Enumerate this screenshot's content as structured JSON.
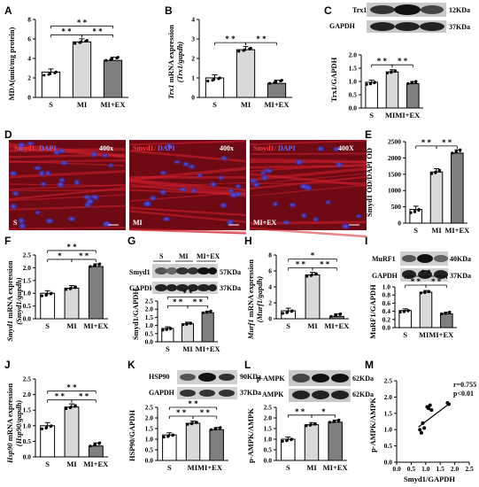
{
  "figure": {
    "panels": {
      "A": {
        "letter": "A",
        "ylabel": "MDA(unit/mg protein)"
      },
      "B": {
        "letter": "B",
        "ylabel_italic": "Trx1",
        "ylabel_tail": " mRNA expression",
        "ylabel2": "(Trx1/gapdh)"
      },
      "C": {
        "letter": "C",
        "ylabel": "Trx1/GAPDH",
        "blot_labels": [
          "Trx1",
          "GAPDH"
        ],
        "kda": [
          "12KDa",
          "37KDa"
        ]
      },
      "D": {
        "letter": "D",
        "image_labels": [
          "S",
          "MI",
          "MI+EX"
        ],
        "mag": [
          "400x",
          "400x",
          "400X"
        ],
        "stain_red": "Smyd1",
        "stain_blue": "DAPI",
        "stain_sep1": " ",
        "stain_sep2": "/"
      },
      "E": {
        "letter": "E",
        "ylabel": "Smyd1 OD/DAPI OD"
      },
      "F": {
        "letter": "F",
        "ylabel_italic": "Smyd1",
        "ylabel_tail": " mRNA expression",
        "ylabel2": "(Smyd1/gapdh)"
      },
      "G": {
        "letter": "G",
        "ylabel": "Smyd1/GAPDH",
        "blot_labels": [
          "Smyd1",
          "GAPDH"
        ],
        "kda": [
          "57KDa",
          "37KDa"
        ],
        "lane_labels": [
          "S",
          "MI",
          "MI+EX"
        ]
      },
      "H": {
        "letter": "H",
        "ylabel_italic": "Murf1",
        "ylabel_tail": " mRNA expression",
        "ylabel2": "(Murf1/gapdh)"
      },
      "I": {
        "letter": "I",
        "ylabel": "MuRF1/GAPDH",
        "blot_labels": [
          "MuRF1",
          "GAPDH"
        ],
        "kda": [
          "40KDa",
          "37KDa"
        ]
      },
      "J": {
        "letter": "J",
        "ylabel_italic": "Hsp90",
        "ylabel_tail": " mRNA expression",
        "ylabel2": "(Hsp90/gapdh)"
      },
      "K": {
        "letter": "K",
        "ylabel": "HSP90/GAPDH",
        "blot_labels": [
          "HSP90",
          "GAPDH"
        ],
        "kda": [
          "90KDa",
          "37KDa"
        ]
      },
      "L": {
        "letter": "L",
        "ylabel": "p-AMPK/AMPK",
        "blot_labels": [
          "p-AMPK",
          "AMPK"
        ],
        "kda": [
          "62KDa",
          "62KDa"
        ]
      },
      "M": {
        "letter": "M",
        "xlabel": "Smyd1/GAPDH",
        "ylabel": "p-AMPK/AMPK",
        "stat_r": "r=0.755",
        "stat_p": "p<0.01"
      }
    },
    "sig": {
      "two": "* *",
      "one": "*"
    }
  },
  "chart_data": [
    {
      "panel": "A",
      "type": "bar",
      "categories": [
        "S",
        "MI",
        "MI+EX"
      ],
      "values": [
        2.6,
        5.7,
        3.8
      ],
      "ylim": [
        0,
        8
      ],
      "yticks": [
        "0",
        "2",
        "4",
        "6",
        "8"
      ],
      "fills": [
        "#ffffff",
        "#d9d9d9",
        "#7f7f7f"
      ]
    },
    {
      "panel": "B",
      "type": "bar",
      "categories": [
        "S",
        "MI",
        "MI+EX"
      ],
      "values": [
        1.0,
        2.45,
        0.72
      ],
      "ylim": [
        0,
        4
      ],
      "yticks": [
        "0",
        "1",
        "2",
        "3",
        "4"
      ],
      "fills": [
        "#ffffff",
        "#d9d9d9",
        "#7f7f7f"
      ]
    },
    {
      "panel": "C",
      "type": "bar",
      "categories": [
        "S",
        "MI",
        "MI+EX"
      ],
      "tick_text": [
        "S",
        "MIMI+EX"
      ],
      "values": [
        0.97,
        1.36,
        0.92
      ],
      "ylim": [
        0,
        2.0
      ],
      "yticks": [
        "0.0",
        "0.5",
        "1.0",
        "1.5",
        "2.0"
      ],
      "fills": [
        "#ffffff",
        "#d9d9d9",
        "#7f7f7f"
      ]
    },
    {
      "panel": "E",
      "type": "bar",
      "categories": [
        "S",
        "MI",
        "MI+EX"
      ],
      "values": [
        420,
        1570,
        2150
      ],
      "ylim": [
        0,
        2500
      ],
      "yticks": [
        "0",
        "500",
        "1000",
        "1500",
        "2000",
        "2500"
      ],
      "fills": [
        "#ffffff",
        "#d9d9d9",
        "#7f7f7f"
      ]
    },
    {
      "panel": "F",
      "type": "bar",
      "categories": [
        "S",
        "MI",
        "MI+EX"
      ],
      "values": [
        1.0,
        1.2,
        2.05
      ],
      "ylim": [
        0,
        2.5
      ],
      "yticks": [
        "0.0",
        "0.5",
        "1.0",
        "1.5",
        "2.0",
        "2.5"
      ],
      "fills": [
        "#ffffff",
        "#d9d9d9",
        "#7f7f7f"
      ]
    },
    {
      "panel": "G",
      "type": "bar",
      "categories": [
        "S",
        "MI",
        "MI+EX"
      ],
      "values": [
        0.82,
        1.1,
        1.78
      ],
      "ylim": [
        0,
        2.5
      ],
      "yticks": [
        "0.0",
        "0.5",
        "1.0",
        "1.5",
        "2.0",
        "2.5"
      ],
      "fills": [
        "#ffffff",
        "#d9d9d9",
        "#7f7f7f"
      ]
    },
    {
      "panel": "H",
      "type": "bar",
      "categories": [
        "S",
        "MI",
        "MI+EX"
      ],
      "values": [
        1.0,
        5.5,
        0.3
      ],
      "ylim": [
        0,
        8
      ],
      "yticks": [
        "0",
        "2",
        "4",
        "6",
        "8"
      ],
      "fills": [
        "#ffffff",
        "#d9d9d9",
        "#7f7f7f"
      ]
    },
    {
      "panel": "I",
      "type": "bar",
      "categories": [
        "S",
        "MI",
        "MI+EX"
      ],
      "tick_text": [
        "S",
        "MIMI+EX"
      ],
      "values": [
        0.42,
        0.87,
        0.34
      ],
      "ylim": [
        0,
        1.0
      ],
      "yticks": [
        "0.0",
        "0.2",
        "0.4",
        "0.6",
        "0.8",
        "1.0"
      ],
      "fills": [
        "#ffffff",
        "#d9d9d9",
        "#7f7f7f"
      ]
    },
    {
      "panel": "J",
      "type": "bar",
      "categories": [
        "S",
        "MI",
        "MI+EX"
      ],
      "values": [
        1.0,
        1.6,
        0.35
      ],
      "ylim": [
        0,
        2.5
      ],
      "yticks": [
        "0.0",
        "0.5",
        "1.0",
        "1.5",
        "2.0",
        "2.5"
      ],
      "fills": [
        "#ffffff",
        "#d9d9d9",
        "#7f7f7f"
      ]
    },
    {
      "panel": "K",
      "type": "bar",
      "categories": [
        "S",
        "MI",
        "MI+EX"
      ],
      "tick_text": [
        "S",
        "MIMI+EX"
      ],
      "values": [
        1.2,
        1.75,
        1.45
      ],
      "ylim": [
        0,
        2.5
      ],
      "yticks": [
        "0.0",
        "0.5",
        "1.0",
        "1.5",
        "2.0",
        "2.5"
      ],
      "fills": [
        "#ffffff",
        "#d9d9d9",
        "#7f7f7f"
      ]
    },
    {
      "panel": "L",
      "type": "bar",
      "categories": [
        "S",
        "MI",
        "MI+EX"
      ],
      "values": [
        1.0,
        1.68,
        1.8
      ],
      "ylim": [
        0,
        2.5
      ],
      "yticks": [
        "0.0",
        "0.5",
        "1.0",
        "1.5",
        "2.0",
        "2.5"
      ],
      "fills": [
        "#ffffff",
        "#d9d9d9",
        "#7f7f7f"
      ]
    },
    {
      "panel": "M",
      "type": "scatter",
      "xlim": [
        0,
        2.5
      ],
      "ylim": [
        0,
        2.5
      ],
      "xticks": [
        "0.0",
        "0.5",
        "1.0",
        "1.5",
        "2.0",
        "2.5"
      ],
      "yticks": [
        "0.0",
        "0.5",
        "1.0",
        "1.5",
        "2.0",
        "2.5"
      ],
      "x": [
        0.8,
        0.85,
        0.9,
        0.95,
        1.05,
        1.1,
        1.15,
        1.2,
        1.75,
        1.8
      ],
      "y": [
        1.0,
        0.9,
        1.2,
        1.05,
        1.7,
        1.65,
        1.75,
        1.6,
        1.82,
        1.78
      ],
      "fit": {
        "x": [
          0.75,
          1.85
        ],
        "y": [
          1.08,
          1.82
        ]
      }
    }
  ]
}
